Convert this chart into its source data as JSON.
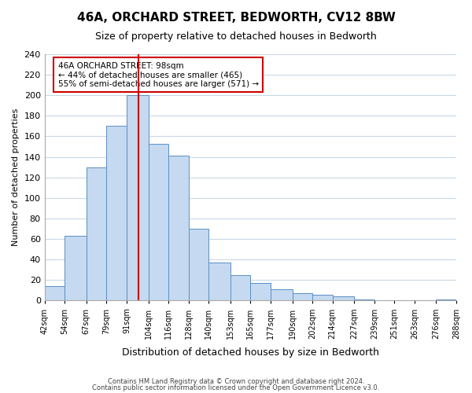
{
  "title": "46A, ORCHARD STREET, BEDWORTH, CV12 8BW",
  "subtitle": "Size of property relative to detached houses in Bedworth",
  "xlabel": "Distribution of detached houses by size in Bedworth",
  "ylabel": "Number of detached properties",
  "bin_edges": [
    42,
    54,
    67,
    79,
    91,
    104,
    116,
    128,
    140,
    153,
    165,
    177,
    190,
    202,
    214,
    227,
    239,
    251,
    263,
    276,
    288
  ],
  "bin_labels": [
    "42sqm",
    "54sqm",
    "67sqm",
    "79sqm",
    "91sqm",
    "104sqm",
    "116sqm",
    "128sqm",
    "140sqm",
    "153sqm",
    "165sqm",
    "177sqm",
    "190sqm",
    "202sqm",
    "214sqm",
    "227sqm",
    "239sqm",
    "251sqm",
    "263sqm",
    "276sqm",
    "288sqm"
  ],
  "bar_heights": [
    14,
    63,
    130,
    170,
    200,
    153,
    141,
    70,
    37,
    25,
    17,
    11,
    7,
    6,
    4,
    1,
    0,
    0,
    0,
    1
  ],
  "bar_color": "#c5d9f0",
  "bar_edge_color": "#5a8fc3",
  "property_line_x": 98,
  "property_line_color": "#cc0000",
  "annotation_text": "46A ORCHARD STREET: 98sqm\n← 44% of detached houses are smaller (465)\n55% of semi-detached houses are larger (571) →",
  "annotation_box_color": "#ffffff",
  "annotation_box_edge": "#cc0000",
  "ylim": [
    0,
    240
  ],
  "yticks": [
    0,
    20,
    40,
    60,
    80,
    100,
    120,
    140,
    160,
    180,
    200,
    220,
    240
  ],
  "footer1": "Contains HM Land Registry data © Crown copyright and database right 2024.",
  "footer2": "Contains public sector information licensed under the Open Government Licence v3.0.",
  "bg_color": "#ffffff",
  "grid_color": "#c8d8e8"
}
